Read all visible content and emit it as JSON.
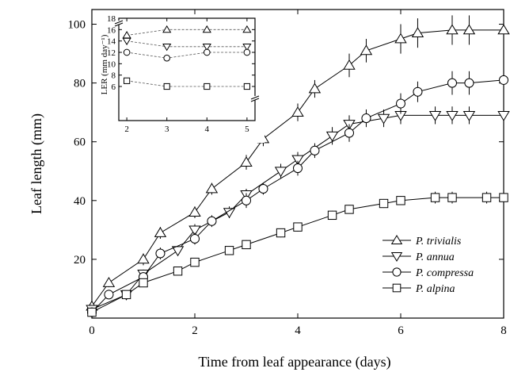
{
  "chart_data": [
    {
      "type": "line",
      "xlabel": "Time from leaf appearance (days)",
      "ylabel": "Leaf length (mm)",
      "xlim": [
        0,
        8
      ],
      "ylim": [
        0,
        105
      ],
      "xticks": [
        0,
        2,
        4,
        6,
        8
      ],
      "yticks": [
        20,
        40,
        60,
        80,
        100
      ],
      "grid": false,
      "legend_position": "bottom-right",
      "series": [
        {
          "name": "P. trivialis",
          "marker": "triangle-up",
          "x": [
            0,
            0.33,
            1,
            1.33,
            2,
            2.33,
            3,
            3.33,
            4,
            4.33,
            5,
            5.33,
            6,
            6.33,
            7,
            7.33,
            8
          ],
          "y": [
            4,
            12,
            20,
            29,
            36,
            44,
            53,
            61,
            70,
            78,
            86,
            91,
            95,
            97,
            98,
            98,
            98
          ],
          "err": [
            1,
            1.5,
            2,
            2,
            2,
            2,
            2.5,
            2.5,
            3,
            3,
            4,
            4,
            5,
            5,
            5,
            5,
            5
          ]
        },
        {
          "name": "P. annua",
          "marker": "triangle-down",
          "x": [
            0,
            0.67,
            1,
            1.67,
            2,
            2.67,
            3,
            3.67,
            4,
            4.67,
            5,
            5.67,
            6,
            6.67,
            7,
            7.33,
            8
          ],
          "y": [
            3,
            8,
            15,
            23,
            30,
            36,
            42,
            50,
            54,
            62,
            66,
            68,
            69,
            69,
            69,
            69,
            69
          ],
          "err": [
            1,
            1,
            1.5,
            1.5,
            2,
            2,
            2,
            2.5,
            2.5,
            3,
            3,
            3,
            3,
            3,
            3,
            3,
            3
          ]
        },
        {
          "name": "P. compressa",
          "marker": "circle",
          "x": [
            0,
            0.33,
            1,
            1.33,
            2,
            2.33,
            3,
            3.33,
            4,
            4.33,
            5,
            5.33,
            6,
            6.33,
            7,
            7.33,
            8
          ],
          "y": [
            2,
            8,
            14,
            22,
            27,
            33,
            40,
            44,
            51,
            57,
            63,
            68,
            73,
            77,
            80,
            80,
            81
          ],
          "err": [
            1,
            1.5,
            1.5,
            2,
            2,
            2,
            2.5,
            2,
            2.5,
            2.5,
            3,
            3,
            3.5,
            3.5,
            4,
            4,
            4
          ]
        },
        {
          "name": "P. alpina",
          "marker": "square",
          "x": [
            0,
            0.67,
            1,
            1.67,
            2,
            2.67,
            3,
            3.67,
            4,
            4.67,
            5,
            5.67,
            6,
            6.67,
            7,
            7.67,
            8
          ],
          "y": [
            2,
            8,
            12,
            16,
            19,
            23,
            25,
            29,
            31,
            35,
            37,
            39,
            40,
            41,
            41,
            41,
            41
          ],
          "err": [
            0.5,
            1,
            1,
            1,
            1,
            1,
            1.5,
            1.5,
            1.5,
            1.5,
            1.5,
            1.5,
            1.5,
            2,
            2,
            2,
            2
          ]
        }
      ]
    },
    {
      "type": "line",
      "xlabel": "",
      "ylabel": "LER (mm day⁻¹)",
      "xlim": [
        1.8,
        5.2
      ],
      "ylim": [
        0,
        18
      ],
      "xticks": [
        2,
        3,
        4,
        5
      ],
      "yticks": [
        6,
        8,
        10,
        12,
        14,
        16,
        18
      ],
      "yaxis_break": true,
      "series": [
        {
          "name": "P. trivialis",
          "marker": "triangle-up",
          "x": [
            2,
            3,
            4,
            5
          ],
          "y": [
            15,
            16,
            16,
            16
          ]
        },
        {
          "name": "P. annua",
          "marker": "triangle-down",
          "x": [
            2,
            3,
            4,
            5
          ],
          "y": [
            14,
            13,
            13,
            13
          ]
        },
        {
          "name": "P. compressa",
          "marker": "circle",
          "x": [
            2,
            3,
            4,
            5
          ],
          "y": [
            12,
            11,
            12,
            12
          ]
        },
        {
          "name": "P. alpina",
          "marker": "square",
          "x": [
            2,
            3,
            4,
            5
          ],
          "y": [
            7,
            6,
            6,
            6
          ]
        }
      ]
    }
  ]
}
